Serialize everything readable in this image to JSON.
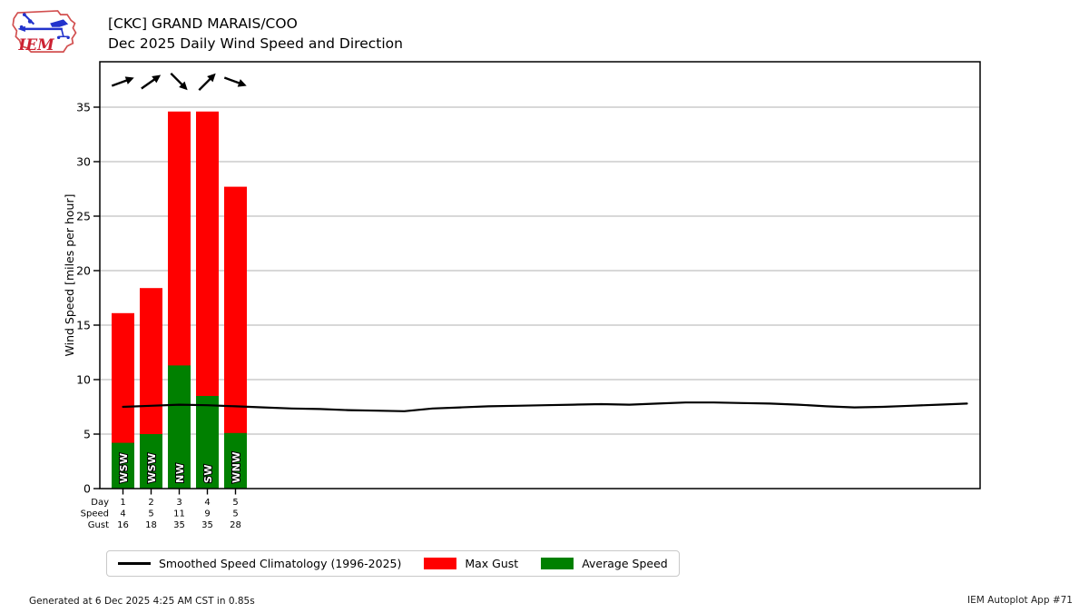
{
  "header": {
    "title_line1": "[CKC] GRAND MARAIS/COO",
    "title_line2": "Dec 2025 Daily Wind Speed and Direction",
    "logo_text": "IEM"
  },
  "footer": {
    "left": "Generated at 6 Dec 2025 4:25 AM CST in 0.85s",
    "right": "IEM Autoplot App #71"
  },
  "legend": {
    "items": [
      {
        "type": "line",
        "color": "#000000",
        "label": "Smoothed Speed Climatology (1996-2025)"
      },
      {
        "type": "patch",
        "color": "#ff0000",
        "label": "Max Gust"
      },
      {
        "type": "patch",
        "color": "#008000",
        "label": "Average Speed"
      }
    ]
  },
  "chart_data": {
    "type": "bar",
    "title": "Dec 2025 Daily Wind Speed and Direction",
    "xlabel": "",
    "ylabel": "Wind Speed [miles per hour]",
    "ylim": [
      0,
      39.2
    ],
    "yticks": [
      0,
      5,
      10,
      15,
      20,
      25,
      30,
      35
    ],
    "x_range_days": [
      1,
      31
    ],
    "grid": "horizontal",
    "colors": {
      "max_gust": "#ff0000",
      "avg_speed": "#008000",
      "climatology": "#000000",
      "grid": "#b0b0b0",
      "frame": "#000000"
    },
    "table_rows": [
      "Day",
      "Speed",
      "Gust"
    ],
    "days": [
      {
        "day": 1,
        "speed": 4,
        "gust": 16,
        "speed_plot": 4.2,
        "gust_plot": 16.1,
        "dir": "WSW",
        "dir_deg": 250
      },
      {
        "day": 2,
        "speed": 5,
        "gust": 18,
        "speed_plot": 5.0,
        "gust_plot": 18.4,
        "dir": "WSW",
        "dir_deg": 235
      },
      {
        "day": 3,
        "speed": 11,
        "gust": 35,
        "speed_plot": 11.3,
        "gust_plot": 34.6,
        "dir": "NW",
        "dir_deg": 315
      },
      {
        "day": 4,
        "speed": 9,
        "gust": 35,
        "speed_plot": 8.5,
        "gust_plot": 34.6,
        "dir": "SW",
        "dir_deg": 225
      },
      {
        "day": 5,
        "speed": 5,
        "gust": 28,
        "speed_plot": 5.1,
        "gust_plot": 27.7,
        "dir": "WNW",
        "dir_deg": 290
      }
    ],
    "climatology_series": {
      "name": "Smoothed Speed Climatology (1996-2025)",
      "x_days": [
        1,
        2,
        3,
        4,
        5,
        6,
        7,
        8,
        9,
        10,
        11,
        12,
        13,
        14,
        15,
        16,
        17,
        18,
        19,
        20,
        21,
        22,
        23,
        24,
        25,
        26,
        27,
        28,
        29,
        30,
        31
      ],
      "values": [
        7.5,
        7.6,
        7.7,
        7.65,
        7.55,
        7.45,
        7.35,
        7.3,
        7.2,
        7.15,
        7.1,
        7.35,
        7.45,
        7.55,
        7.6,
        7.65,
        7.7,
        7.75,
        7.7,
        7.8,
        7.9,
        7.9,
        7.85,
        7.8,
        7.7,
        7.55,
        7.45,
        7.5,
        7.6,
        7.7,
        7.8
      ]
    }
  }
}
